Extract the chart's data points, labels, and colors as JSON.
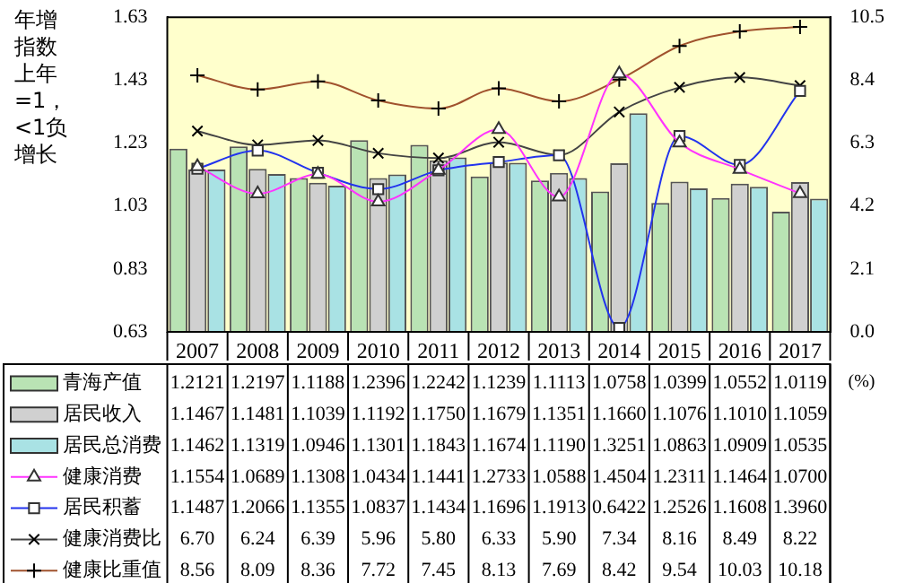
{
  "chart_data": {
    "type": "bar",
    "ylabel": "年增指数上年=1，<1负增长",
    "y2label": "(%)",
    "categories": [
      "2007",
      "2008",
      "2009",
      "2010",
      "2011",
      "2012",
      "2013",
      "2014",
      "2015",
      "2016",
      "2017"
    ],
    "ylim": [
      0.63,
      1.63
    ],
    "yticks": [
      0.63,
      0.83,
      1.03,
      1.23,
      1.43,
      1.63
    ],
    "y2lim": [
      0,
      10.5
    ],
    "y2ticks": [
      {
        "value": 0,
        "label": "0.0"
      },
      {
        "value": 2.1,
        "label": "2.1"
      },
      {
        "value": 4.2,
        "label": "4.2"
      },
      {
        "value": 6.3,
        "label": "6.3"
      },
      {
        "value": 8.4,
        "label": "8.4"
      },
      {
        "value": 10.5,
        "label": "10.5"
      }
    ],
    "grid": false,
    "legend": "bottom",
    "data_labels": true,
    "series": [
      {
        "name": "青海产值",
        "color": "#b9e3b4",
        "values": [
          1.2121,
          1.2197,
          1.1188,
          1.2396,
          1.2242,
          1.1239,
          1.1113,
          1.0758,
          1.0399,
          1.0552,
          1.0119
        ],
        "value_labels": [
          "1.2121",
          "1.2197",
          "1.1188",
          "1.2396",
          "1.2242",
          "1.1239",
          "1.1113",
          "1.0758",
          "1.0399",
          "1.0552",
          "1.0119"
        ]
      },
      {
        "name": "居民收入",
        "color": "#d0d0d0",
        "values": [
          1.1467,
          1.1481,
          1.1039,
          1.1192,
          1.175,
          1.1679,
          1.1351,
          1.166,
          1.1076,
          1.101,
          1.1059
        ],
        "value_labels": [
          "1.1467",
          "1.1481",
          "1.1039",
          "1.1192",
          "1.1750",
          "1.1679",
          "1.1351",
          "1.1660",
          "1.1076",
          "1.1010",
          "1.1059"
        ]
      },
      {
        "name": "居民总消费",
        "color": "#a9e2e4",
        "values": [
          1.1462,
          1.1319,
          1.0946,
          1.1301,
          1.1843,
          1.1674,
          1.119,
          1.3251,
          1.0863,
          1.0909,
          1.0535
        ],
        "value_labels": [
          "1.1462",
          "1.1319",
          "1.0946",
          "1.1301",
          "1.1843",
          "1.1674",
          "1.1190",
          "1.3251",
          "1.0863",
          "1.0909",
          "1.0535"
        ]
      },
      {
        "name": "健康消费",
        "type": "line",
        "color": "#ff33ff",
        "marker": "triangle",
        "values": [
          1.1554,
          1.0689,
          1.1308,
          1.0434,
          1.1441,
          1.2733,
          1.0588,
          1.4504,
          1.2311,
          1.1464,
          1.07
        ],
        "value_labels": [
          "1.1554",
          "1.0689",
          "1.1308",
          "1.0434",
          "1.1441",
          "1.2733",
          "1.0588",
          "1.4504",
          "1.2311",
          "1.1464",
          "1.0700"
        ]
      },
      {
        "name": "居民积蓄",
        "type": "line",
        "color": "#2233ee",
        "marker": "square",
        "values": [
          1.1487,
          1.2066,
          1.1355,
          1.0837,
          1.1434,
          1.1696,
          1.1913,
          0.6422,
          1.2526,
          1.1608,
          1.396
        ],
        "value_labels": [
          "1.1487",
          "1.2066",
          "1.1355",
          "1.0837",
          "1.1434",
          "1.1696",
          "1.1913",
          "0.6422",
          "1.2526",
          "1.1608",
          "1.3960"
        ]
      },
      {
        "name": "健康消费比",
        "type": "line",
        "axis": "y2",
        "color": "#444444",
        "marker": "cross",
        "values": [
          6.7,
          6.24,
          6.39,
          5.96,
          5.8,
          6.33,
          5.9,
          7.34,
          8.16,
          8.49,
          8.22
        ],
        "value_labels": [
          "6.70",
          "6.24",
          "6.39",
          "5.96",
          "5.80",
          "6.33",
          "5.90",
          "7.34",
          "8.16",
          "8.49",
          "8.22"
        ]
      },
      {
        "name": "健康比重值",
        "type": "line",
        "axis": "y2",
        "color": "#a0522d",
        "marker": "plus",
        "values": [
          8.56,
          8.09,
          8.36,
          7.72,
          7.45,
          8.13,
          7.69,
          8.42,
          9.54,
          10.03,
          10.18
        ],
        "value_labels": [
          "8.56",
          "8.09",
          "8.36",
          "7.72",
          "7.45",
          "8.13",
          "7.69",
          "8.42",
          "9.54",
          "10.03",
          "10.18"
        ]
      }
    ]
  }
}
